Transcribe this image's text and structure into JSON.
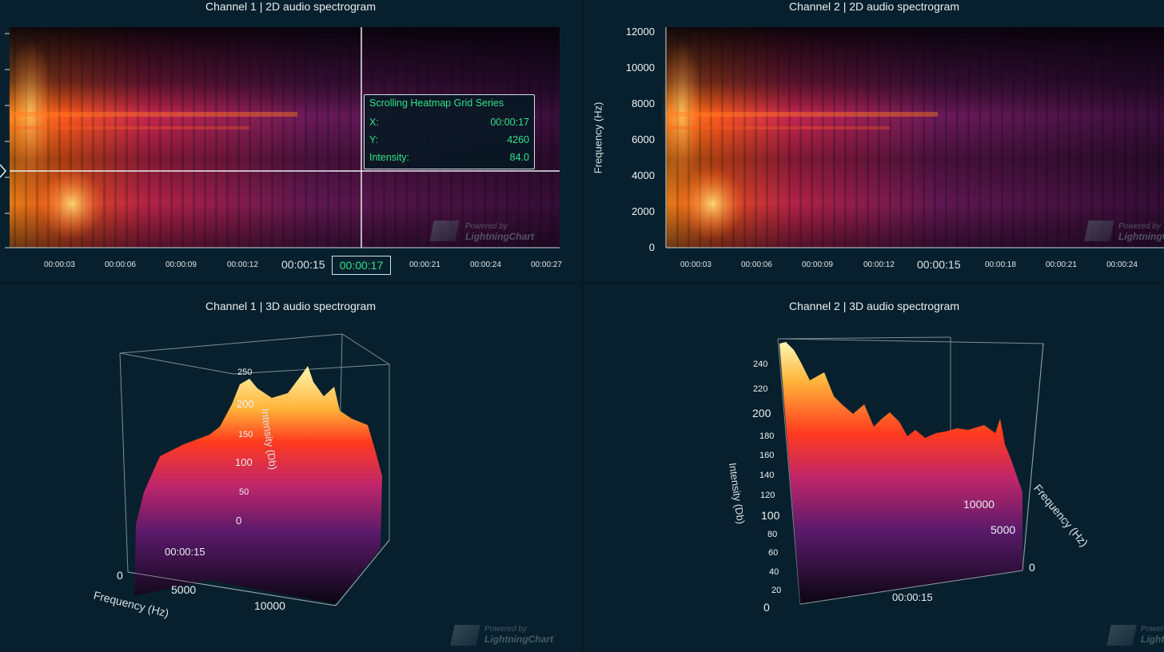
{
  "panels": {
    "ch1_2d": {
      "title": "Channel 1 | 2D audio spectrogram"
    },
    "ch2_2d": {
      "title": "Channel 2 | 2D audio spectrogram"
    },
    "ch1_3d": {
      "title": "Channel 1 | 3D audio spectrogram"
    },
    "ch2_3d": {
      "title": "Channel 2 | 3D audio spectrogram"
    }
  },
  "ch1_2d_axis": {
    "x_ticks": [
      "00:00:03",
      "00:00:06",
      "00:00:09",
      "00:00:12",
      "00:00:15",
      "00:00:21",
      "00:00:24",
      "00:00:27"
    ],
    "cursor_value": "00:00:17"
  },
  "ch2_2d_axis": {
    "x_ticks": [
      "00:00:03",
      "00:00:06",
      "00:00:09",
      "00:00:12",
      "00:00:15",
      "00:00:18",
      "00:00:21",
      "00:00:24"
    ],
    "y_ticks": [
      "12000",
      "10000",
      "8000",
      "6000",
      "4000",
      "2000",
      "0"
    ],
    "y_label": "Frequency (Hz)"
  },
  "tooltip": {
    "title": "Scrolling Heatmap Grid Series",
    "x_label": "X:",
    "x_value": "00:00:17",
    "y_label": "Y:",
    "y_value": "4260",
    "i_label": "Intensity:",
    "i_value": "84.0"
  },
  "ch1_3d": {
    "z_ticks": [
      "250",
      "200",
      "150",
      "100",
      "50",
      "0"
    ],
    "z_label": "Intensity (Db)",
    "time_label": "00:00:15",
    "freq_ticks": [
      "0",
      "5000",
      "10000"
    ],
    "freq_label": "Frequency (Hz)"
  },
  "ch2_3d": {
    "z_ticks": [
      "240",
      "220",
      "200",
      "180",
      "160",
      "140",
      "120",
      "100",
      "80",
      "60",
      "40",
      "20",
      "0"
    ],
    "z_label": "Intensity (Db)",
    "time_label": "00:00:15",
    "freq_ticks": [
      "10000",
      "5000",
      "0"
    ],
    "freq_label": "Frequency (Hz)"
  },
  "watermark": {
    "line1": "Powered by",
    "line2": "LightningChart"
  },
  "colors": {
    "background": "#071a26",
    "panel": "#08202d",
    "tooltip_text": "#2fe48a",
    "heat_low": "#14061c",
    "heat_mid": "#c2185b",
    "heat_high": "#fff3a0"
  }
}
